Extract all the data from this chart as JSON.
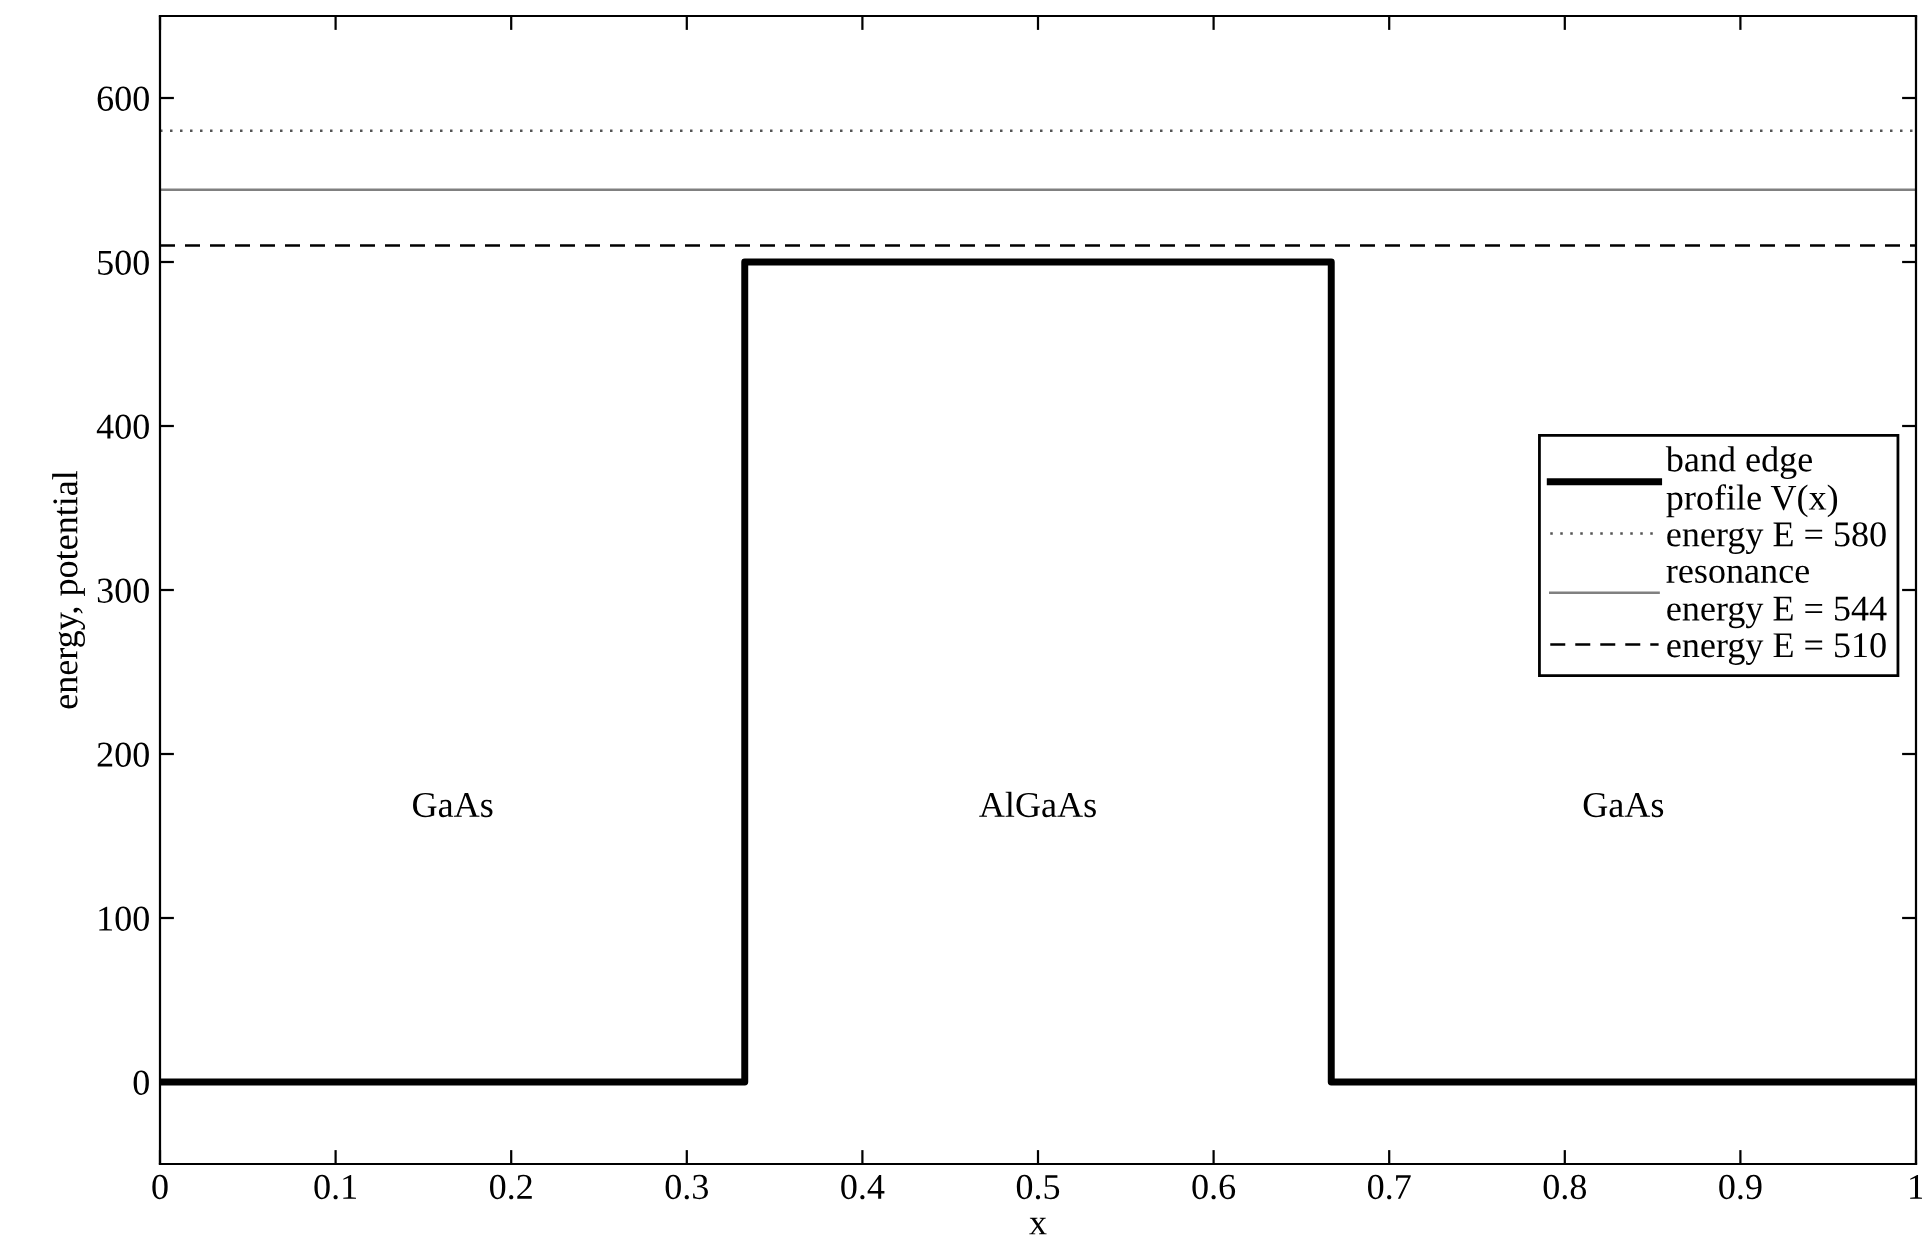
{
  "chart_data": {
    "type": "line",
    "xlabel": "x",
    "ylabel": "energy, potential",
    "series": [
      {
        "name": "band edge\nprofile V(x)",
        "color": "#000000",
        "line_style": "solid",
        "x": [
          0,
          0.333,
          0.333,
          0.667,
          0.667,
          1
        ],
        "values": [
          0,
          0,
          500,
          500,
          0,
          0
        ]
      },
      {
        "name": "energy E = 580",
        "color": "#555555",
        "line_style": "dotted",
        "x": [
          0,
          1
        ],
        "values": [
          580,
          580
        ]
      },
      {
        "name": "resonance\nenergy E = 544",
        "color": "#808080",
        "line_style": "solid",
        "x": [
          0,
          1
        ],
        "values": [
          544,
          544
        ]
      },
      {
        "name": "energy E = 510",
        "color": "#000000",
        "line_style": "dashed",
        "x": [
          0,
          1
        ],
        "values": [
          510,
          510
        ]
      }
    ],
    "annotations": [
      "GaAs",
      "AlGaAs",
      "GaAs"
    ],
    "xlim": [
      0,
      1
    ],
    "xticks": [
      0,
      0.1,
      0.2,
      0.3,
      0.4,
      0.5,
      0.6,
      0.7,
      0.8,
      0.9,
      1
    ],
    "ylim": [
      -50,
      650
    ],
    "yticks": [
      0,
      100,
      200,
      300,
      400,
      500,
      600
    ],
    "grid": false,
    "legend": "right",
    "marker": "none"
  }
}
